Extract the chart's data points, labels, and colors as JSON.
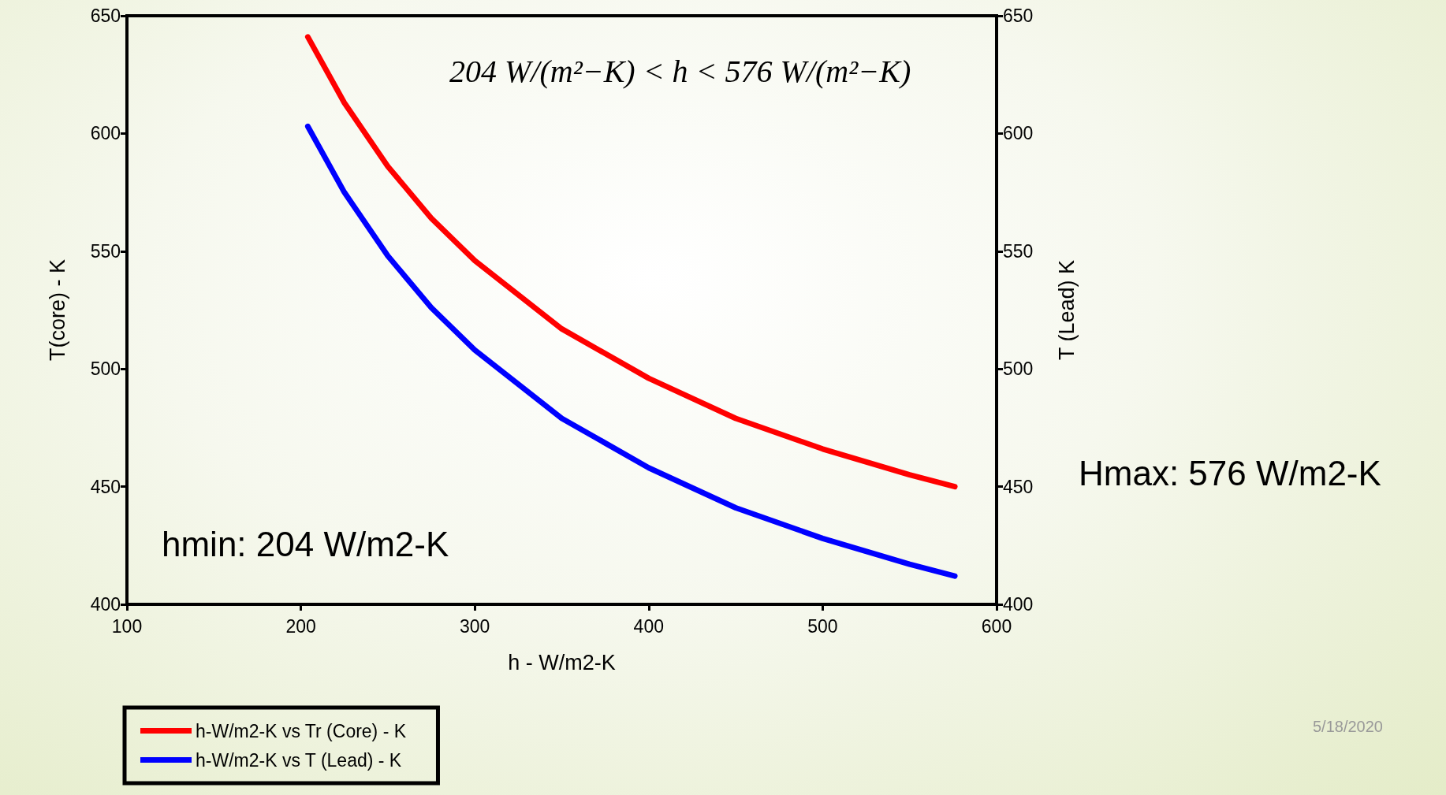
{
  "chart_data": {
    "type": "line",
    "xlabel": "h - W/m2-K",
    "ylabel": "T(core) - K",
    "y2label": "T (Lead) K",
    "x": [
      204,
      225,
      250,
      275,
      300,
      350,
      400,
      450,
      500,
      550,
      576
    ],
    "series": [
      {
        "name": "h-W/m2-K vs Tr (Core) - K",
        "color": "#ff0000",
        "values": [
          641,
          613,
          586,
          564,
          546,
          517,
          496,
          479,
          466,
          455,
          450
        ]
      },
      {
        "name": "h-W/m2-K vs T (Lead) - K",
        "color": "#0000ff",
        "values": [
          603,
          575,
          548,
          526,
          508,
          479,
          458,
          441,
          428,
          417,
          412
        ]
      }
    ],
    "xlim": [
      100,
      600
    ],
    "xticks": [
      100,
      200,
      300,
      400,
      500,
      600
    ],
    "ylim": [
      400,
      650
    ],
    "yticks": [
      400,
      450,
      500,
      550,
      600,
      650
    ],
    "y2lim": [
      400,
      650
    ],
    "y2ticks": [
      400,
      450,
      500,
      550,
      600,
      650
    ],
    "annotations": [
      "204 W/(m²−K) < h < 576 W/(m²−K)",
      "hmin: 204 W/m2-K",
      "Hmax: 576 W/m2-K",
      "5/18/2020"
    ],
    "legend": "bottom left",
    "grid": false,
    "marker": "none",
    "line_style": "solid"
  }
}
